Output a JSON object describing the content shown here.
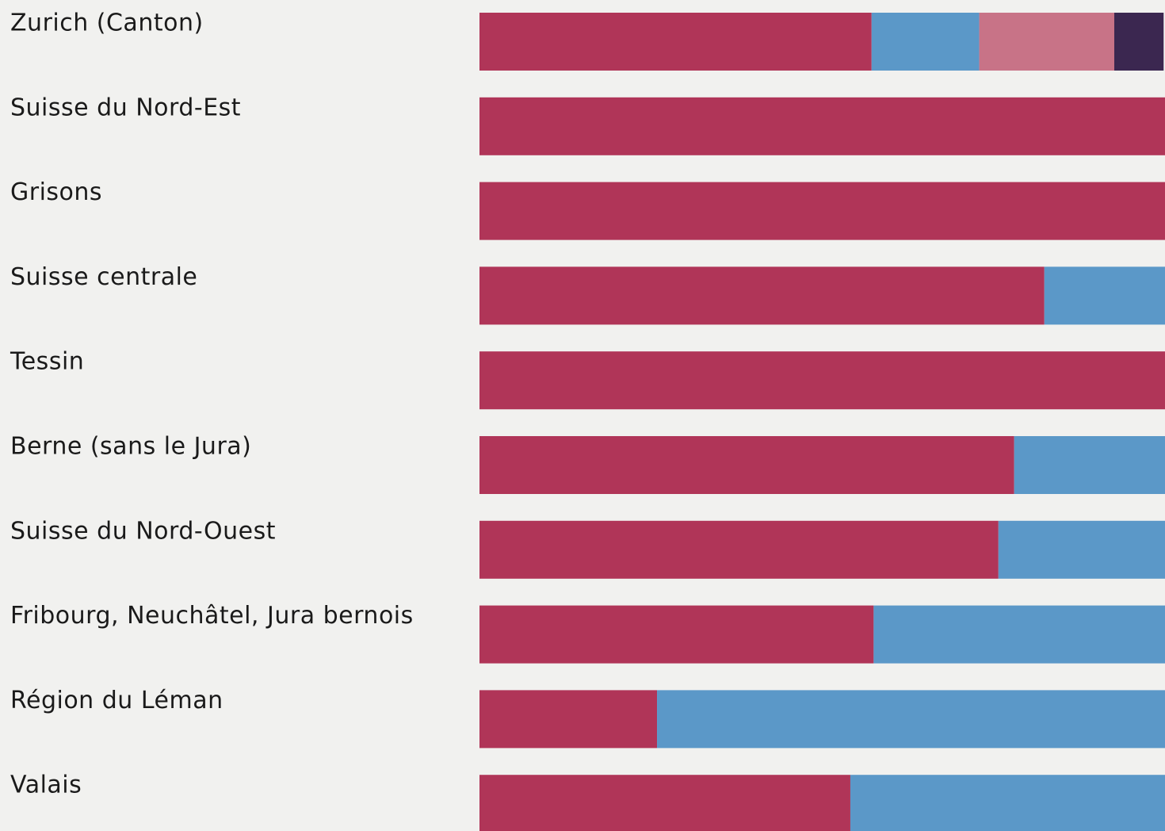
{
  "chart_data": {
    "type": "stacked_barh",
    "categories": [
      "Zurich (Canton)",
      "Suisse du Nord-Est",
      "Grisons",
      "Suisse centrale",
      "Tessin",
      "Berne (sans le Jura)",
      "Suisse du Nord-Ouest",
      "Fribourg, Neuchâtel, Jura bernois",
      "Région du Léman",
      "Valais"
    ],
    "series": [
      {
        "color": "#b03558",
        "values": [
          57.2,
          100,
          100,
          82.4,
          100,
          78.0,
          75.7,
          57.5,
          25.9,
          54.1
        ]
      },
      {
        "color": "#5b98c8",
        "values": [
          15.7,
          0,
          0,
          17.6,
          0,
          22.0,
          24.3,
          42.5,
          74.1,
          45.9
        ]
      },
      {
        "color": "#c87387",
        "values": [
          19.7,
          0,
          0,
          0,
          0,
          0,
          0,
          0,
          0,
          0
        ]
      },
      {
        "color": "#3b2750",
        "values": [
          7.2,
          0,
          0,
          0,
          0,
          0,
          0,
          0,
          0,
          0
        ]
      }
    ],
    "xlim": [
      0,
      100
    ]
  }
}
